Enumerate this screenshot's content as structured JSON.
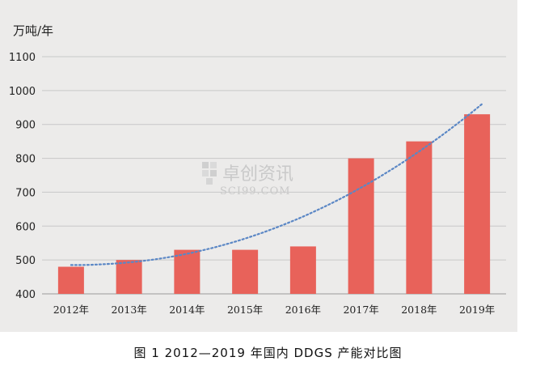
{
  "caption": "图 1  2012—2019 年国内 DDGS 产能对比图",
  "watermark": {
    "brand": "卓创资讯",
    "site": "SCI99.COM"
  },
  "colors": {
    "bar": "#e8625a",
    "trend": "#5b87c5",
    "grid": "#c8c8c8",
    "panel": "#ecebea"
  },
  "chart_data": {
    "type": "bar",
    "unit_label": "万吨/年",
    "categories": [
      "2012年",
      "2013年",
      "2014年",
      "2015年",
      "2016年",
      "2017年",
      "2018年",
      "2019年"
    ],
    "values": [
      480,
      500,
      530,
      530,
      540,
      800,
      850,
      930
    ],
    "trendline": {
      "type": "polynomial",
      "style": "dotted",
      "start": 485,
      "end": 960
    },
    "ylim": [
      400,
      1100
    ],
    "yticks": [
      400,
      500,
      600,
      700,
      800,
      900,
      1000,
      1100
    ],
    "grid": true,
    "legend": "none"
  }
}
